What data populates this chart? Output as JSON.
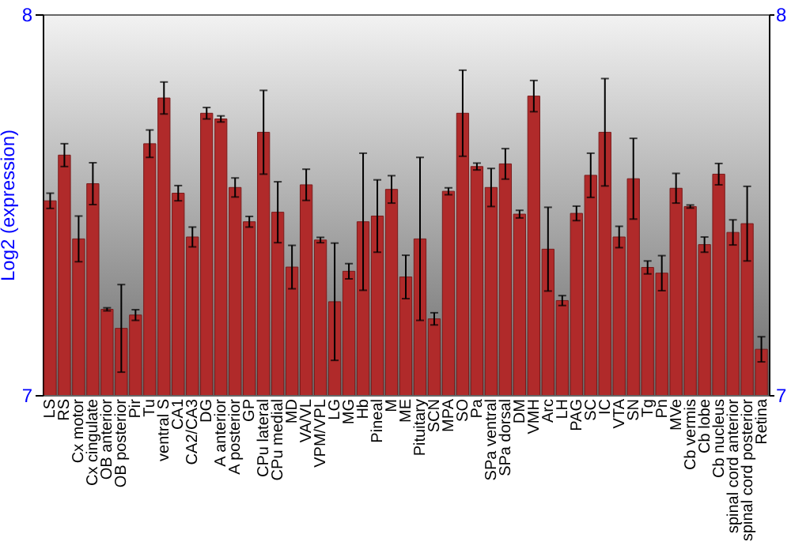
{
  "chart_data": {
    "type": "bar",
    "ylabel": "Log2 (expression)",
    "categories": [
      "LS",
      "RS",
      "Cx motor",
      "Cx cingulate",
      "OB anterior",
      "OB posterior",
      "Pir",
      "Tu",
      "ventral S",
      "CA1",
      "CA2/CA3",
      "DG",
      "A anterior",
      "A posterior",
      "GP",
      "CPu lateral",
      "CPu medial",
      "MD",
      "VA/VL",
      "VPM/VPL",
      "LG",
      "MG",
      "Hb",
      "Pineal",
      "M",
      "ME",
      "Pituitary",
      "SCN",
      "MPA",
      "SO",
      "Pa",
      "SPa ventral",
      "SPa dorsal",
      "DM",
      "VMH",
      "Arc",
      "LH",
      "PAG",
      "SC",
      "IC",
      "VTA",
      "SN",
      "Tg",
      "Pn",
      "MVe",
      "Cb vermis",
      "Cb lobe",
      "Cb nucleus",
      "spinal cord anterior",
      "spinal cord posterior",
      "Retina"
    ],
    "series": [
      {
        "color": "#b02a2a",
        "values": [
          7.51,
          7.63,
          7.41,
          7.555,
          7.225,
          7.175,
          7.21,
          7.66,
          7.78,
          7.53,
          7.415,
          7.74,
          7.725,
          7.545,
          7.455,
          7.69,
          7.48,
          7.336,
          7.552,
          7.407,
          7.245,
          7.325,
          7.455,
          7.47,
          7.54,
          7.31,
          7.41,
          7.2,
          7.535,
          7.74,
          7.6,
          7.545,
          7.607,
          7.475,
          7.785,
          7.383,
          7.248,
          7.477,
          7.577,
          7.69,
          7.415,
          7.568,
          7.335,
          7.32,
          7.543,
          7.495,
          7.395,
          7.58,
          7.427,
          7.45,
          7.12
        ],
        "errors": [
          0.02,
          0.03,
          0.06,
          0.055,
          0.004,
          0.115,
          0.014,
          0.036,
          0.042,
          0.02,
          0.026,
          0.015,
          0.008,
          0.025,
          0.014,
          0.11,
          0.08,
          0.057,
          0.041,
          0.007,
          0.154,
          0.02,
          0.18,
          0.095,
          0.036,
          0.057,
          0.214,
          0.016,
          0.009,
          0.113,
          0.009,
          0.05,
          0.04,
          0.01,
          0.041,
          0.11,
          0.013,
          0.019,
          0.058,
          0.141,
          0.028,
          0.106,
          0.017,
          0.046,
          0.039,
          0.004,
          0.02,
          0.028,
          0.033,
          0.098,
          0.033
        ]
      }
    ],
    "ylim": [
      7,
      8
    ],
    "yticks": [
      7,
      8
    ],
    "y2lim": [
      7,
      8
    ],
    "y2ticks": [
      7,
      8
    ]
  }
}
